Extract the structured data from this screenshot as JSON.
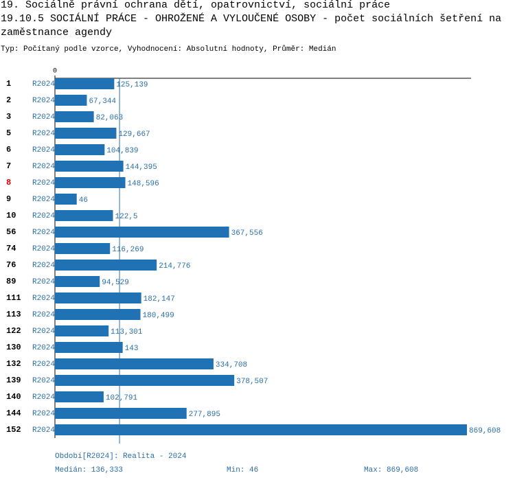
{
  "chart_data": {
    "type": "bar",
    "orientation": "horizontal",
    "title": "19. Sociálně právní ochrana dětí, opatrovnictví, sociální práce",
    "subtitle": "19.10.5 SOCIÁLNÍ PRÁCE - OHROŽENÉ A VYLOUČENÉ OSOBY - počet sociálních šetření na zaměstnance agendy",
    "description": "Typ: Počítaný podle vzorce, Vyhodnocení: Absolutní hodnoty, Průměr: Medián",
    "categories": [
      "1",
      "2",
      "3",
      "5",
      "6",
      "7",
      "8",
      "9",
      "10",
      "56",
      "74",
      "76",
      "89",
      "111",
      "113",
      "122",
      "130",
      "132",
      "139",
      "140",
      "144",
      "152"
    ],
    "highlight": "8",
    "series": [
      {
        "name": "R2024",
        "color": "#2171b5",
        "values": [
          125.139,
          67.344,
          82.063,
          129.667,
          104.839,
          144.395,
          148.596,
          46,
          122.5,
          367.556,
          116.269,
          214.776,
          94.529,
          182.147,
          180.499,
          113.301,
          143,
          334.708,
          378.507,
          102.791,
          277.895,
          869.608
        ],
        "value_labels": [
          "125,139",
          "67,344",
          "82,063",
          "129,667",
          "104,839",
          "144,395",
          "148,596",
          "46",
          "122,5",
          "367,556",
          "116,269",
          "214,776",
          "94,529",
          "182,147",
          "180,499",
          "113,301",
          "143",
          "334,708",
          "378,507",
          "102,791",
          "277,895",
          "869,608"
        ]
      }
    ],
    "xlim": [
      0,
      869.608
    ],
    "xticks": [
      0
    ],
    "median": {
      "value": 136.333,
      "label": "Medián: 136,333"
    },
    "footer": {
      "period": "Období[R2024]: Realita - 2024",
      "min": "Min: 46",
      "max": "Max: 869,608"
    }
  }
}
